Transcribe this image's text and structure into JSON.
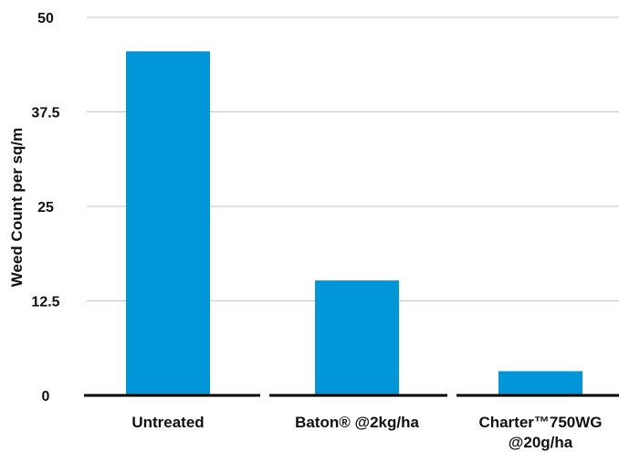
{
  "chart_data": {
    "type": "bar",
    "title": "",
    "xlabel": "",
    "ylabel": "Weed Count per sq/m",
    "ylim": [
      0,
      50
    ],
    "yticks": [
      "0",
      "12.5",
      "25",
      "37.5",
      "50"
    ],
    "ytick_values": [
      0,
      12.5,
      25,
      37.5,
      50
    ],
    "grid": true,
    "bar_color": "#0096d8",
    "categories": [
      {
        "line1": "Untreated",
        "line2": ""
      },
      {
        "line1": "Baton® @2kg/ha",
        "line2": ""
      },
      {
        "line1": "Charter™750WG",
        "line2": "@20g/ha"
      }
    ],
    "values": [
      45.5,
      15.2,
      3.2
    ]
  }
}
